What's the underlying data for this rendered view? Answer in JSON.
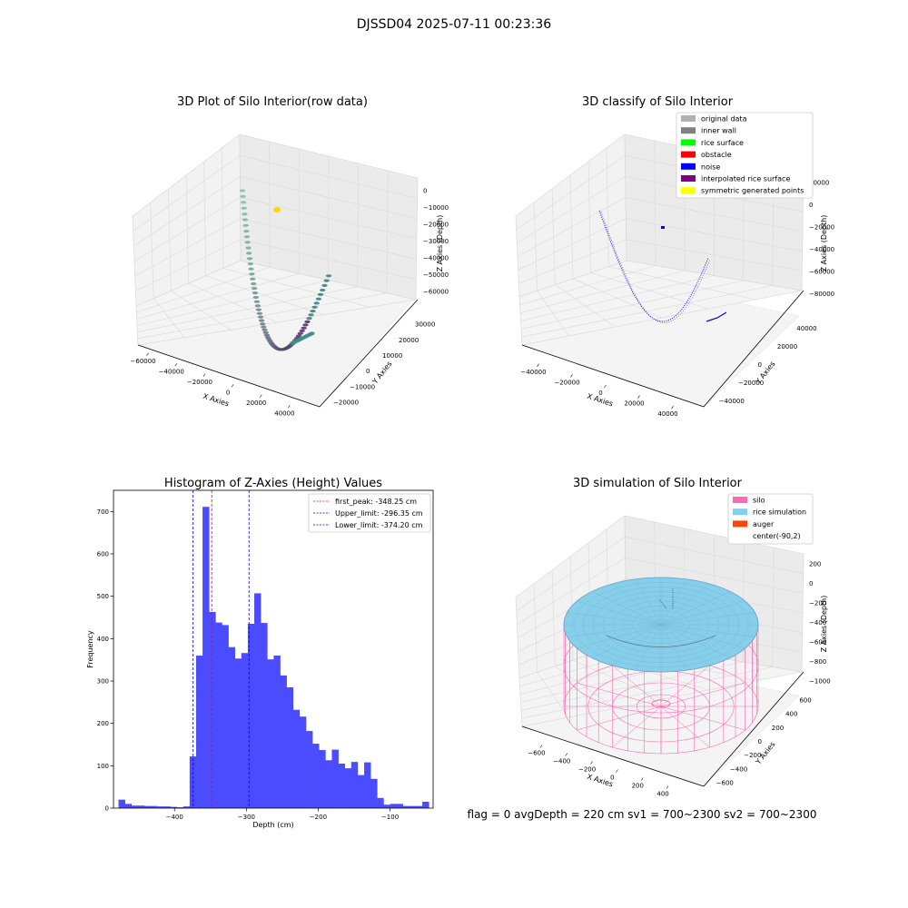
{
  "figure": {
    "suptitle": "DJSSD04 2025-07-11 00:23:36",
    "status_line": "flag = 0     avgDepth = 220 cm  sv1 = 700~2300  sv2 = 700~2300"
  },
  "colors": {
    "hist_bar": "#4b4bff",
    "first_peak_line": "#ff0000",
    "limit_line": "#0000ff",
    "grid": "#d9d9d9",
    "pane": "#f2f2f2",
    "silo": "#ff69b4",
    "rice": "#87ceeb",
    "auger": "#ff4500",
    "noise": "#0000ff",
    "row_data_start": "#76c7a5",
    "row_data_end": "#440154",
    "yellow_points": "#ffd700"
  },
  "chart_data": [
    {
      "type": "scatter3d",
      "title": "3D Plot of Silo Interior(row data)",
      "xlabel": "X Axies",
      "ylabel": "Y Axies",
      "zlabel": "Z Axies (Depth)",
      "x_ticks": [
        "−60000",
        "−40000",
        "−20000",
        "0",
        "20000",
        "40000"
      ],
      "y_ticks": [
        "−20000",
        "−10000",
        "0",
        "10000",
        "20000",
        "30000"
      ],
      "z_ticks": [
        "0",
        "−10000",
        "−20000",
        "−30000",
        "−40000",
        "−50000",
        "−60000"
      ],
      "xlim": [
        -60000,
        50000
      ],
      "ylim": [
        -25000,
        30000
      ],
      "zlim": [
        -65000,
        0
      ],
      "colormap": "viridis"
    },
    {
      "type": "scatter3d",
      "title": "3D classify of Silo Interior",
      "xlabel": "X Axies",
      "ylabel": "Y Axies",
      "zlabel": "Z Axies (Depth)",
      "x_ticks": [
        "−40000",
        "−20000",
        "0",
        "20000",
        "40000"
      ],
      "y_ticks": [
        "−40000",
        "−20000",
        "0",
        "20000",
        "40000"
      ],
      "z_ticks": [
        "20000",
        "0",
        "−20000",
        "−40000",
        "−60000",
        "−80000"
      ],
      "legend_position": "top-right",
      "legend": [
        {
          "label": "original data",
          "color": "#b0b0b0"
        },
        {
          "label": "inner wall",
          "color": "#808080"
        },
        {
          "label": "rice surface",
          "color": "#00ff00"
        },
        {
          "label": "obstacle",
          "color": "#ff0000"
        },
        {
          "label": "noise",
          "color": "#0000ff"
        },
        {
          "label": "interpolated rice surface",
          "color": "#800080"
        },
        {
          "label": "symmetric generated points",
          "color": "#ffff00"
        }
      ]
    },
    {
      "type": "bar",
      "title": "Histogram of Z-Axies (Height) Values",
      "xlabel": "Depth (cm)",
      "ylabel": "Frequency",
      "xlim": [
        -485,
        -40
      ],
      "ylim": [
        0,
        750
      ],
      "x_ticks": [
        -400,
        -300,
        -200,
        -100
      ],
      "x_tick_labels": [
        "−400",
        "−300",
        "−200",
        "−100"
      ],
      "y_ticks": [
        0,
        100,
        200,
        300,
        400,
        500,
        600,
        700
      ],
      "bin_width": 9,
      "bin_start": -478,
      "values": [
        20,
        10,
        6,
        6,
        5,
        5,
        4,
        4,
        3,
        2,
        4,
        122,
        360,
        711,
        463,
        438,
        432,
        380,
        353,
        366,
        435,
        507,
        437,
        351,
        360,
        313,
        285,
        232,
        216,
        182,
        152,
        137,
        113,
        138,
        105,
        94,
        109,
        78,
        108,
        69,
        24,
        8,
        10,
        10,
        5,
        5,
        5,
        15
      ],
      "legend_position": "top-right",
      "reference_lines": [
        {
          "label": "first_peak: -348.25 cm",
          "x": -348.25,
          "color": "#ff0000"
        },
        {
          "label": "Upper_limit: -296.35 cm",
          "x": -296.35,
          "color": "#0000ff"
        },
        {
          "label": "Lower_limit: -374.20 cm",
          "x": -374.2,
          "color": "#0000ff"
        }
      ]
    },
    {
      "type": "surface3d",
      "title": "3D simulation of Silo Interior",
      "xlabel": "X Axies",
      "ylabel": "Y Axies",
      "zlabel": "Z Axies (Depth)",
      "x_ticks": [
        "−600",
        "−400",
        "−200",
        "0",
        "200",
        "400"
      ],
      "y_ticks": [
        "−600",
        "−400",
        "−200",
        "0",
        "200",
        "400",
        "600"
      ],
      "z_ticks": [
        "200",
        "0",
        "−200",
        "−400",
        "−600",
        "−800",
        "−1000"
      ],
      "legend_position": "top-right",
      "legend": [
        {
          "label": "silo",
          "color": "#ff69b4"
        },
        {
          "label": "rice simulation",
          "color": "#87ceeb"
        },
        {
          "label": "auger",
          "color": "#ff4500"
        },
        {
          "label": "center(-90,2)",
          "color": ""
        }
      ]
    }
  ]
}
